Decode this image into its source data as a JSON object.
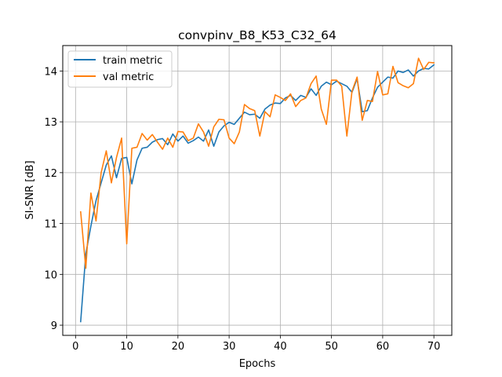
{
  "chart_data": {
    "type": "line",
    "title": "convpinv_B8_K53_C32_64",
    "xlabel": "Epochs",
    "ylabel": "SI-SNR [dB]",
    "xlim": [
      -2.5,
      73.5
    ],
    "ylim": [
      8.8,
      14.5
    ],
    "xticks": [
      0,
      10,
      20,
      30,
      40,
      50,
      60,
      70
    ],
    "yticks": [
      9,
      10,
      11,
      12,
      13,
      14
    ],
    "grid": true,
    "legend_position": "top-left",
    "x": [
      1,
      2,
      3,
      4,
      5,
      6,
      7,
      8,
      9,
      10,
      11,
      12,
      13,
      14,
      15,
      16,
      17,
      18,
      19,
      20,
      21,
      22,
      23,
      24,
      25,
      26,
      27,
      28,
      29,
      30,
      31,
      32,
      33,
      34,
      35,
      36,
      37,
      38,
      39,
      40,
      41,
      42,
      43,
      44,
      45,
      46,
      47,
      48,
      49,
      50,
      51,
      52,
      53,
      54,
      55,
      56,
      57,
      58,
      59,
      60,
      61,
      62,
      63,
      64,
      65,
      66,
      67,
      68,
      69,
      70
    ],
    "series": [
      {
        "name": "train metric",
        "color": "#1f77b4",
        "values": [
          9.07,
          10.4,
          10.95,
          11.45,
          11.8,
          12.15,
          12.33,
          11.9,
          12.28,
          12.3,
          11.78,
          12.25,
          12.48,
          12.5,
          12.6,
          12.65,
          12.67,
          12.55,
          12.76,
          12.62,
          12.72,
          12.58,
          12.63,
          12.7,
          12.62,
          12.84,
          12.52,
          12.8,
          12.92,
          12.99,
          12.95,
          13.07,
          13.19,
          13.14,
          13.15,
          13.07,
          13.25,
          13.33,
          13.37,
          13.36,
          13.47,
          13.52,
          13.42,
          13.52,
          13.48,
          13.65,
          13.52,
          13.7,
          13.78,
          13.73,
          13.8,
          13.75,
          13.7,
          13.58,
          13.85,
          13.2,
          13.22,
          13.47,
          13.68,
          13.78,
          13.88,
          13.86,
          14.0,
          13.97,
          14.02,
          13.9,
          14.0,
          14.05,
          14.04,
          14.12
        ]
      },
      {
        "name": "val metric",
        "color": "#ff7f0e",
        "values": [
          11.23,
          10.12,
          11.6,
          11.05,
          12.0,
          12.43,
          11.8,
          12.3,
          12.68,
          10.6,
          12.48,
          12.5,
          12.77,
          12.64,
          12.75,
          12.6,
          12.46,
          12.68,
          12.5,
          12.81,
          12.8,
          12.63,
          12.68,
          12.96,
          12.8,
          12.52,
          12.9,
          13.05,
          13.04,
          12.68,
          12.57,
          12.8,
          13.34,
          13.26,
          13.22,
          12.72,
          13.2,
          13.1,
          13.53,
          13.48,
          13.42,
          13.55,
          13.3,
          13.42,
          13.47,
          13.75,
          13.9,
          13.25,
          12.95,
          13.82,
          13.82,
          13.7,
          12.72,
          13.6,
          13.88,
          13.03,
          13.42,
          13.4,
          13.99,
          13.53,
          13.55,
          14.09,
          13.77,
          13.71,
          13.67,
          13.75,
          14.25,
          14.03,
          14.17,
          14.16
        ]
      }
    ]
  }
}
